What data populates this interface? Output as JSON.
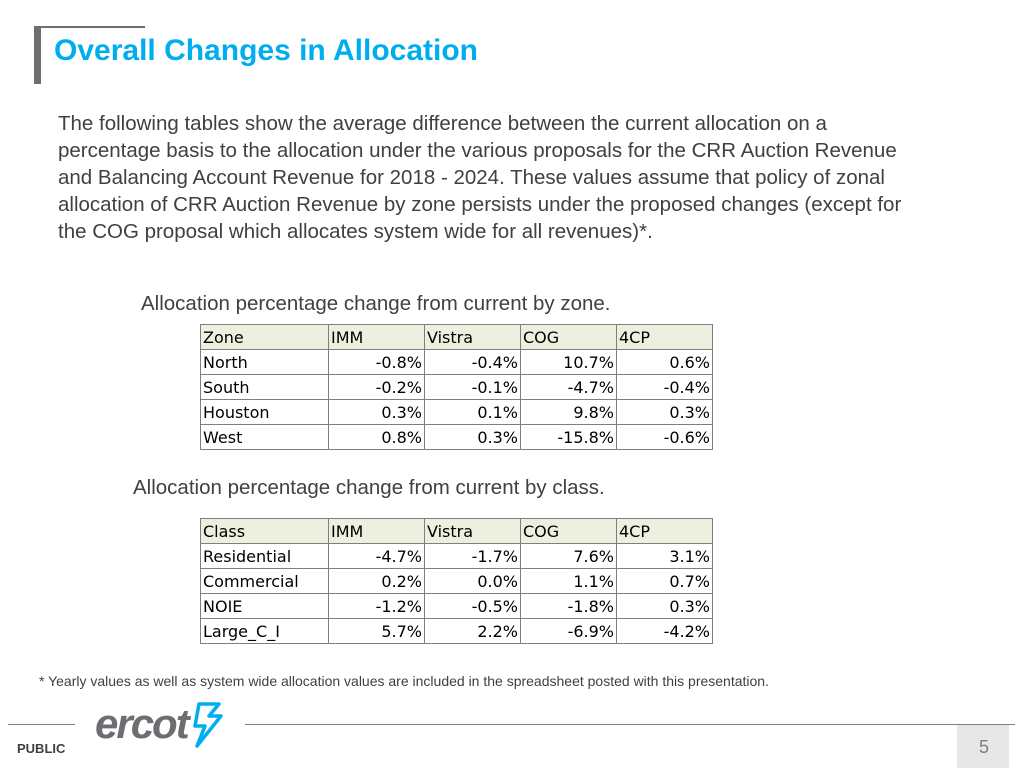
{
  "header": {
    "title": "Overall Changes in Allocation"
  },
  "intro": "The following tables show the average difference between the current allocation on a percentage basis to the allocation under the various proposals for the CRR Auction Revenue and Balancing Account Revenue for 2018 - 2024. These values assume that policy of zonal allocation of CRR Auction Revenue by zone persists under the proposed changes (except for the COG proposal which allocates system wide for all revenues)*.",
  "zone_table": {
    "caption": "Allocation percentage change from current by zone.",
    "headers": [
      "Zone",
      "IMM",
      "Vistra",
      "COG",
      "4CP"
    ],
    "rows": [
      [
        "North",
        "-0.8%",
        "-0.4%",
        "10.7%",
        "0.6%"
      ],
      [
        "South",
        "-0.2%",
        "-0.1%",
        "-4.7%",
        "-0.4%"
      ],
      [
        "Houston",
        "0.3%",
        "0.1%",
        "9.8%",
        "0.3%"
      ],
      [
        "West",
        "0.8%",
        "0.3%",
        "-15.8%",
        "-0.6%"
      ]
    ]
  },
  "class_table": {
    "caption": "Allocation percentage change from current by class.",
    "headers": [
      "Class",
      "IMM",
      "Vistra",
      "COG",
      "4CP"
    ],
    "rows": [
      [
        "Residential",
        "-4.7%",
        "-1.7%",
        "7.6%",
        "3.1%"
      ],
      [
        "Commercial",
        "0.2%",
        "0.0%",
        "1.1%",
        "0.7%"
      ],
      [
        "NOIE",
        "-1.2%",
        "-0.5%",
        "-1.8%",
        "0.3%"
      ],
      [
        "Large_C_I",
        "5.7%",
        "2.2%",
        "-6.9%",
        "-4.2%"
      ]
    ]
  },
  "footnote": "* Yearly values as well as system wide allocation values are included in the spreadsheet posted with this presentation.",
  "footer": {
    "logo_text": "ercot",
    "classification": "PUBLIC",
    "page_number": "5"
  },
  "colors": {
    "title": "#00aeef",
    "table_header_bg": "#ebf1de",
    "logo_mark": "#00aeef",
    "logo_text": "#6d6e71"
  },
  "icons": {
    "logo": "ercot-lightning-logo-icon"
  }
}
